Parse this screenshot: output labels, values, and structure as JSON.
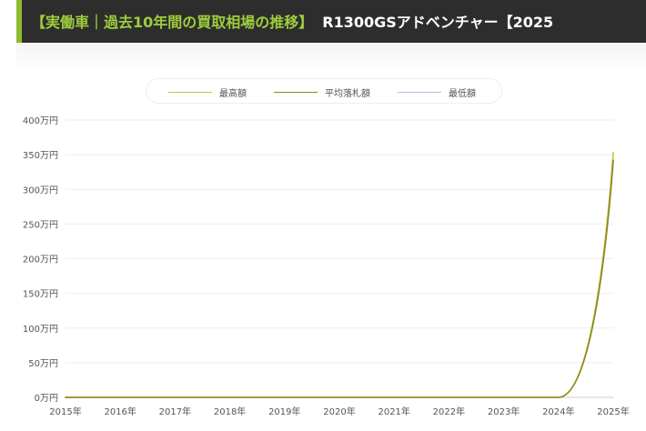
{
  "header": {
    "prefix": "【実働車｜過去10年間の買取相場の推移】",
    "model": "R1300GSアドベンチャー【2025"
  },
  "legend": {
    "items": [
      {
        "label": "最高額",
        "color": "#c9c23c"
      },
      {
        "label": "平均落札額",
        "color": "#8a8a1e"
      },
      {
        "label": "最低額",
        "color": "#c8b8e0"
      }
    ]
  },
  "chart_data": {
    "type": "line",
    "x": [
      "2015年",
      "2016年",
      "2017年",
      "2018年",
      "2019年",
      "2020年",
      "2021年",
      "2022年",
      "2023年",
      "2024年",
      "2025年"
    ],
    "ylim": [
      0,
      400
    ],
    "yticks": [
      0,
      50,
      100,
      150,
      200,
      250,
      300,
      350,
      400
    ],
    "ytick_labels": [
      "0万円",
      "50万円",
      "100万円",
      "150万円",
      "200万円",
      "250万円",
      "300万円",
      "350万円",
      "400万円"
    ],
    "grid": true,
    "legend_position": "top",
    "series": [
      {
        "name": "最高額",
        "color": "#c9c23c",
        "values": [
          0,
          0,
          0,
          0,
          0,
          0,
          0,
          0,
          0,
          0,
          353
        ]
      },
      {
        "name": "平均落札額",
        "color": "#8a8a1e",
        "values": [
          0,
          0,
          0,
          0,
          0,
          0,
          0,
          0,
          0,
          0,
          342
        ]
      },
      {
        "name": "最低額",
        "color": "#c8b8e0",
        "values": [
          0,
          0,
          0,
          0,
          0,
          0,
          0,
          0,
          0,
          0,
          339
        ]
      }
    ]
  }
}
